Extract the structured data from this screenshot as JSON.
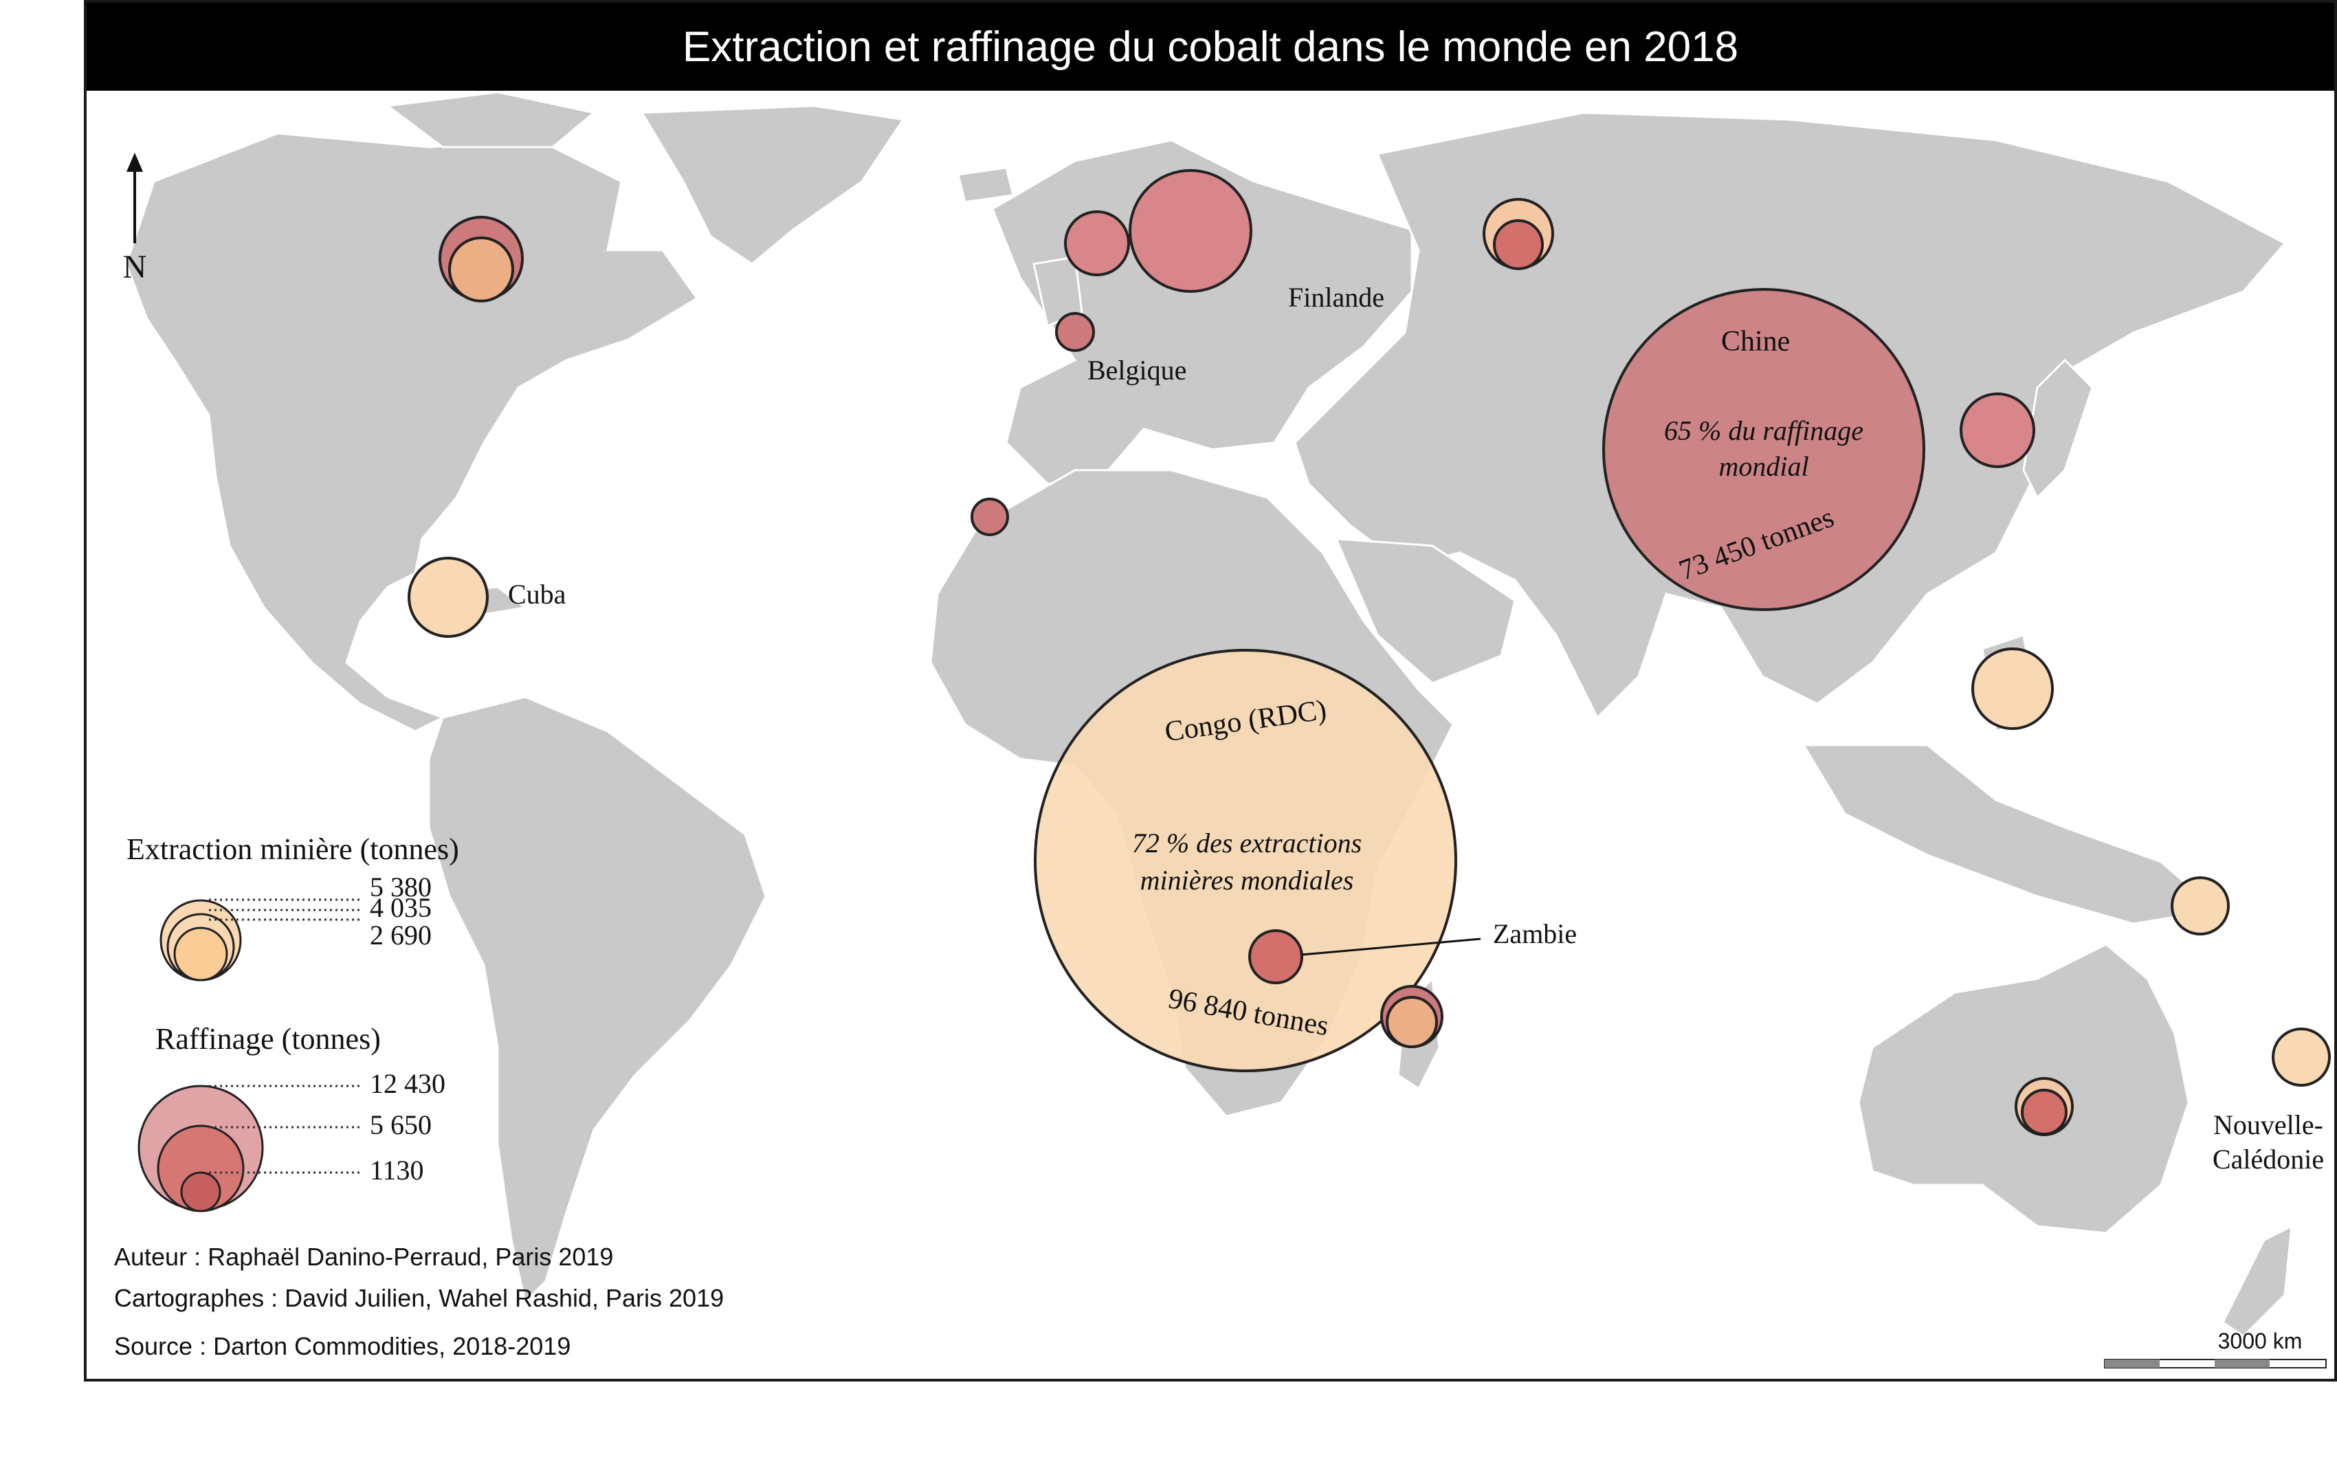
{
  "title": "Extraction et raffinage du cobalt dans le monde en 2018",
  "north_label": "N",
  "colors": {
    "land": "#c9c9c9",
    "extraction": "#f9d9b3",
    "raffinage": "#cc7a7c",
    "raffinage_dark": "#c86060",
    "outline": "#222222",
    "title_bar": "#000000"
  },
  "labels": {
    "finlande": "Finlande",
    "belgique": "Belgique",
    "chine": "Chine",
    "chine_share": "65 % du raffinage",
    "chine_share_2": "mondial",
    "chine_tonnes": "73 450 tonnes",
    "cuba": "Cuba",
    "congo": "Congo (RDC)",
    "congo_share": "72 % des extractions",
    "congo_share_2": "minières mondiales",
    "congo_tonnes": "96 840 tonnes",
    "zambie": "Zambie",
    "nc_1": "Nouvelle-",
    "nc_2": "Calédonie"
  },
  "legend": {
    "extraction_title": "Extraction minière (tonnes)",
    "extraction_values": [
      "5 380",
      "4 035",
      "2 690"
    ],
    "raffinage_title": "Raffinage (tonnes)",
    "raffinage_values": [
      "12 430",
      "5 650",
      "1130"
    ]
  },
  "credits": {
    "author": "Auteur : Raphaël Danino-Perraud, Paris 2019",
    "cartographers": "Cartographes : David Juilien, Wahel Rashid, Paris 2019",
    "source": "Source : Darton Commodities, 2018-2019"
  },
  "scale_bar": {
    "label": "3000 km"
  }
}
